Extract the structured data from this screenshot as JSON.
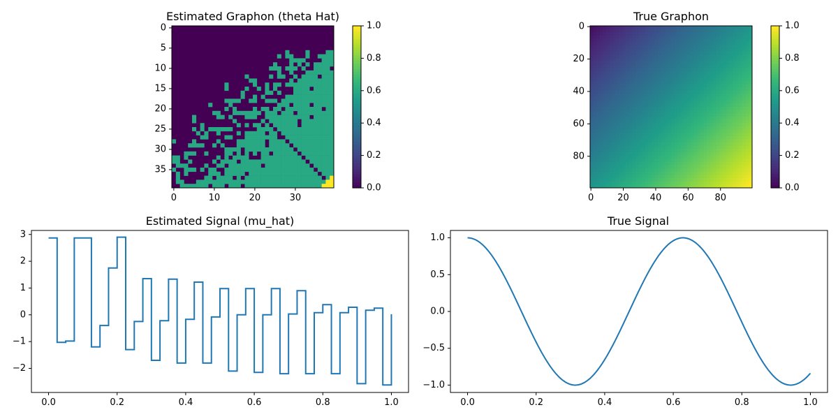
{
  "chart_data": [
    {
      "type": "heatmap",
      "title": "Estimated Graphon (theta Hat)",
      "size": 40,
      "xticks": [
        0,
        10,
        20,
        30
      ],
      "yticks": [
        0,
        5,
        10,
        15,
        20,
        25,
        30,
        35
      ],
      "colorbar": {
        "min": 0.0,
        "max": 1.0,
        "ticks": [
          "0.0",
          "0.2",
          "0.4",
          "0.6",
          "0.8",
          "1.0"
        ]
      },
      "levels": [
        0,
        0.6,
        1.0
      ],
      "description_pattern": "mostly 0 (dark) in upper-left, ~0.6 (teal) in lower-right triangle with noisy boundary, dark diagonal line, yellow (1.0) corner at bottom-right"
    },
    {
      "type": "heatmap",
      "title": "True Graphon",
      "size": 100,
      "xticks": [
        0,
        20,
        40,
        60,
        80
      ],
      "yticks": [
        0,
        20,
        40,
        60,
        80
      ],
      "colorbar": {
        "min": 0.0,
        "max": 1.0,
        "ticks": [
          "0.0",
          "0.2",
          "0.4",
          "0.6",
          "0.8",
          "1.0"
        ]
      },
      "pattern": "smooth gradient: value ≈ (row + col) / 198 scaled from ~0.05 at top-left to ~1.0 at bottom-right"
    },
    {
      "type": "line",
      "title": "Estimated Signal (mu_hat)",
      "step": true,
      "x": [
        0.0,
        0.025,
        0.05,
        0.075,
        0.1,
        0.125,
        0.15,
        0.175,
        0.2,
        0.225,
        0.25,
        0.275,
        0.3,
        0.325,
        0.35,
        0.375,
        0.4,
        0.425,
        0.45,
        0.475,
        0.5,
        0.525,
        0.55,
        0.575,
        0.6,
        0.625,
        0.65,
        0.675,
        0.7,
        0.725,
        0.75,
        0.775,
        0.8,
        0.825,
        0.85,
        0.875,
        0.9,
        0.925,
        0.95,
        0.975,
        1.0
      ],
      "y": [
        2.87,
        -1.03,
        -0.98,
        2.87,
        2.87,
        -1.2,
        -0.4,
        1.75,
        2.9,
        -1.3,
        -0.25,
        1.35,
        -1.7,
        -0.22,
        1.33,
        -1.8,
        -0.17,
        1.22,
        -1.8,
        -0.08,
        0.98,
        -2.1,
        0.0,
        0.98,
        -2.15,
        0.0,
        0.98,
        -2.2,
        0.03,
        0.9,
        -2.2,
        0.08,
        0.38,
        -2.2,
        0.08,
        0.28,
        -2.57,
        0.17,
        0.25,
        -2.62,
        0.02
      ],
      "xlim": [
        -0.05,
        1.05
      ],
      "ylim": [
        -2.9,
        3.15
      ],
      "xticks": [
        0.0,
        0.2,
        0.4,
        0.6,
        0.8,
        1.0
      ],
      "yticks": [
        -2,
        -1,
        0,
        1,
        2,
        3
      ],
      "color": "#1f77b4"
    },
    {
      "type": "line",
      "title": "True Signal",
      "function": "cos(10x)",
      "x_range": [
        0.0,
        1.0
      ],
      "xlim": [
        -0.05,
        1.05
      ],
      "ylim": [
        -1.1,
        1.1
      ],
      "xticks": [
        0.0,
        0.2,
        0.4,
        0.6,
        0.8,
        1.0
      ],
      "yticks": [
        -1.0,
        -0.5,
        0.0,
        0.5,
        1.0
      ],
      "color": "#1f77b4"
    }
  ],
  "labels": {
    "t1": "Estimated Graphon (theta Hat)",
    "t2": "True Graphon",
    "t3": "Estimated Signal (mu_hat)",
    "t4": "True Signal"
  }
}
